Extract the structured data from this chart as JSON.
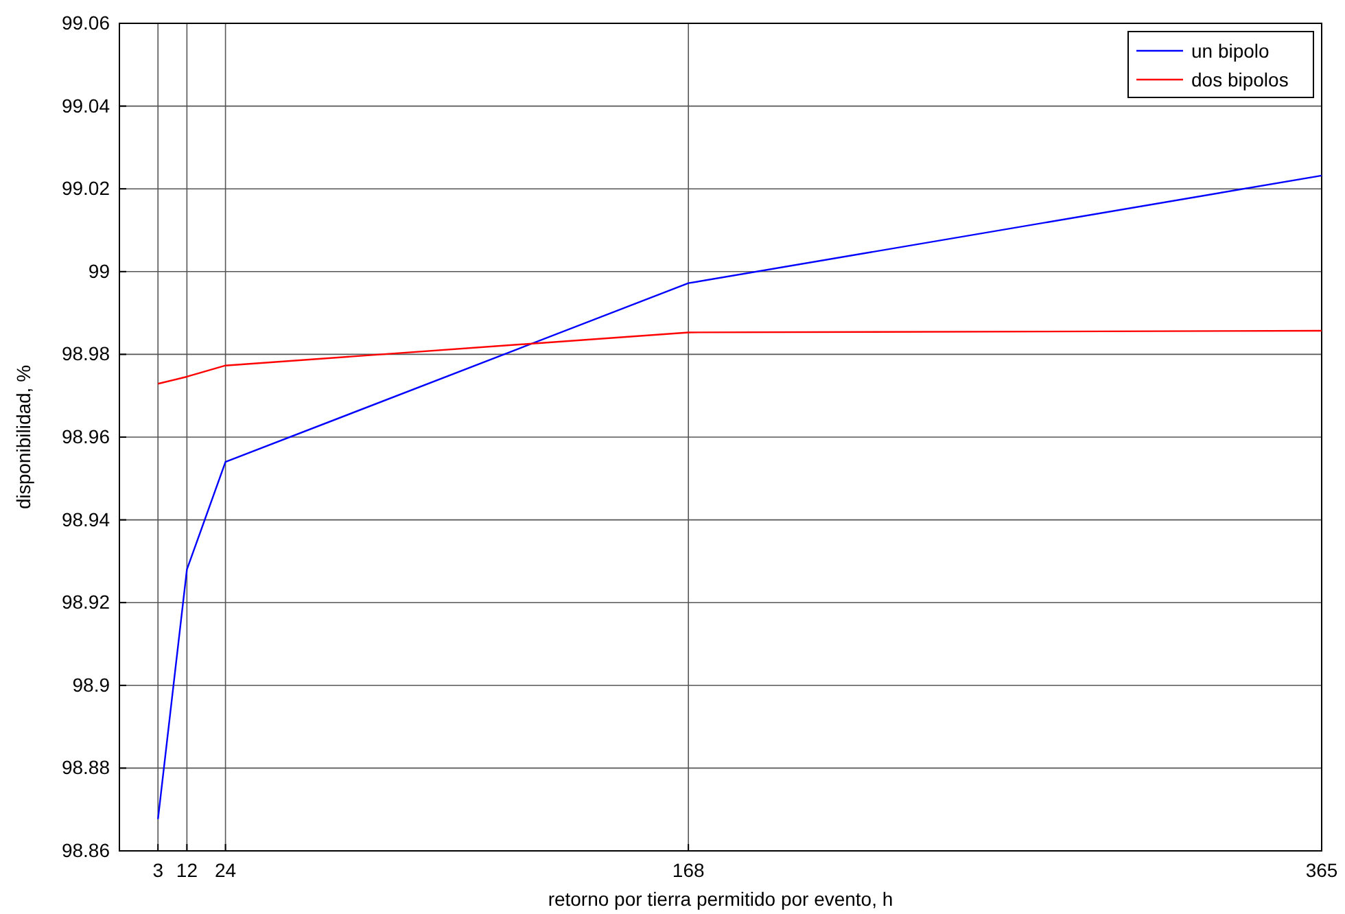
{
  "chart_data": {
    "type": "line",
    "xlabel": "retorno por tierra permitido por evento, h",
    "ylabel": "disponibilidad, %",
    "x": [
      3,
      12,
      24,
      168,
      365
    ],
    "series": [
      {
        "name": "un bipolo",
        "color": "#0000ff",
        "values": [
          98.8677,
          98.928,
          98.954,
          98.9972,
          99.0232
        ]
      },
      {
        "name": "dos bipolos",
        "color": "#ff0000",
        "values": [
          98.9729,
          98.9746,
          98.9773,
          98.9853,
          98.9857
        ]
      }
    ],
    "xlim": [
      -9,
      365
    ],
    "xticks": [
      3,
      12,
      24,
      168,
      365
    ],
    "ylim": [
      98.86,
      99.06
    ],
    "yticks": [
      {
        "value": 98.86,
        "label": "98.86"
      },
      {
        "value": 98.88,
        "label": "98.88"
      },
      {
        "value": 98.9,
        "label": "98.9"
      },
      {
        "value": 98.92,
        "label": "98.92"
      },
      {
        "value": 98.94,
        "label": "98.94"
      },
      {
        "value": 98.96,
        "label": "98.96"
      },
      {
        "value": 98.98,
        "label": "98.98"
      },
      {
        "value": 99,
        "label": "99"
      },
      {
        "value": 99.02,
        "label": "99.02"
      },
      {
        "value": 99.04,
        "label": "99.04"
      },
      {
        "value": 99.06,
        "label": "99.06"
      }
    ],
    "grid": true,
    "legend": "top right",
    "marker": "none",
    "line_style": "solid"
  }
}
